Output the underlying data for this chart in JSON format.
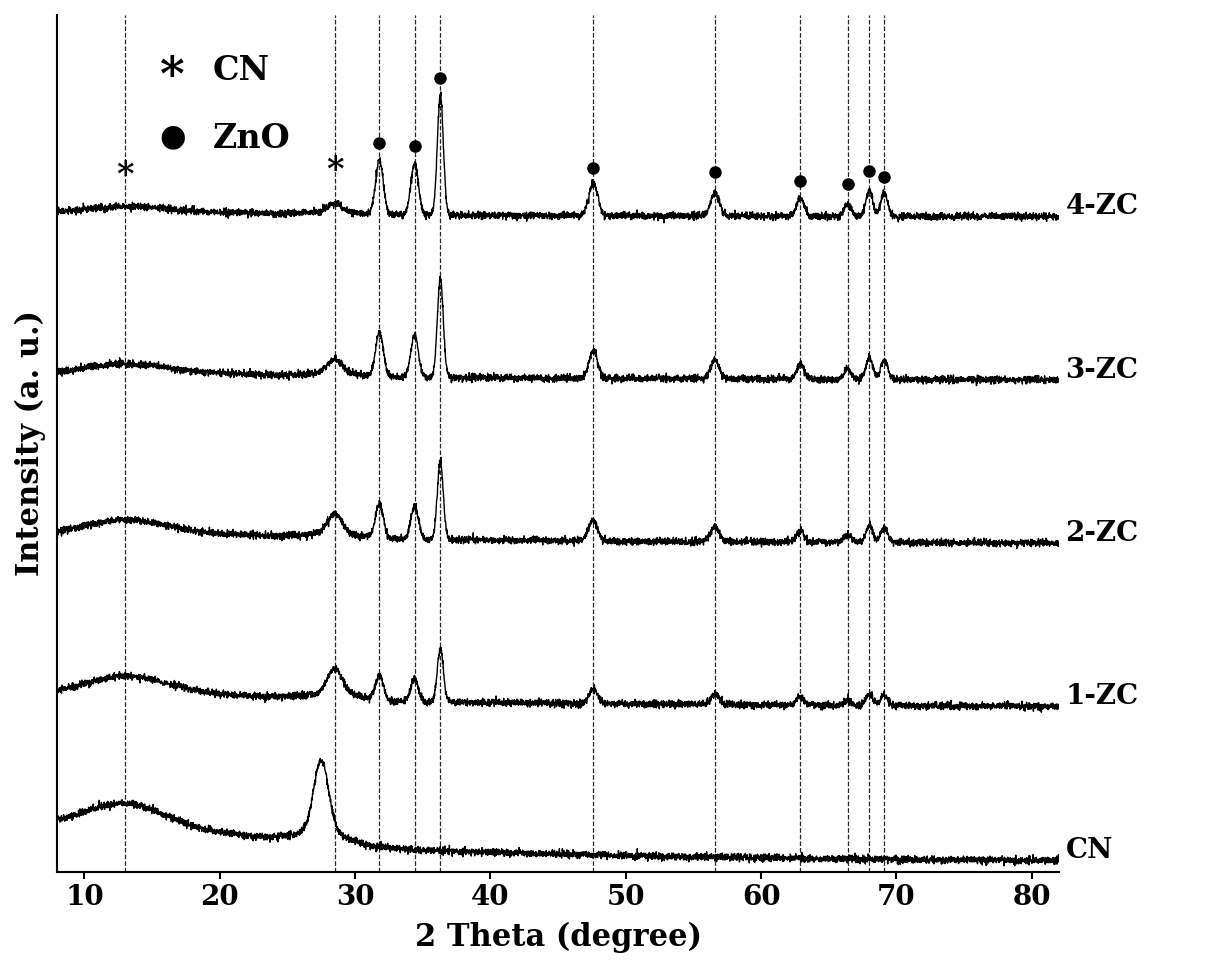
{
  "xlabel": "2 Theta (degree)",
  "ylabel": "Intensity (a. u.)",
  "xlim": [
    8,
    82
  ],
  "xticks": [
    10,
    20,
    30,
    40,
    50,
    60,
    70,
    80
  ],
  "background_color": "#ffffff",
  "curve_color": "#000000",
  "dashed_lines_x": [
    13.0,
    28.5,
    31.8,
    34.4,
    36.3,
    47.6,
    56.6,
    62.9,
    66.4,
    68.0,
    69.1
  ],
  "legend_label_cn": "CN",
  "legend_label_zno": "ZnO",
  "curve_labels": [
    "CN",
    "1-ZC",
    "2-ZC",
    "3-ZC",
    "4-ZC"
  ],
  "offsets": [
    0.0,
    0.16,
    0.33,
    0.5,
    0.67
  ],
  "label_fontsize": 22,
  "tick_fontsize": 20,
  "legend_fontsize": 24,
  "curve_label_fontsize": 20,
  "linewidth": 1.0,
  "noise_amplitude": 0.003
}
